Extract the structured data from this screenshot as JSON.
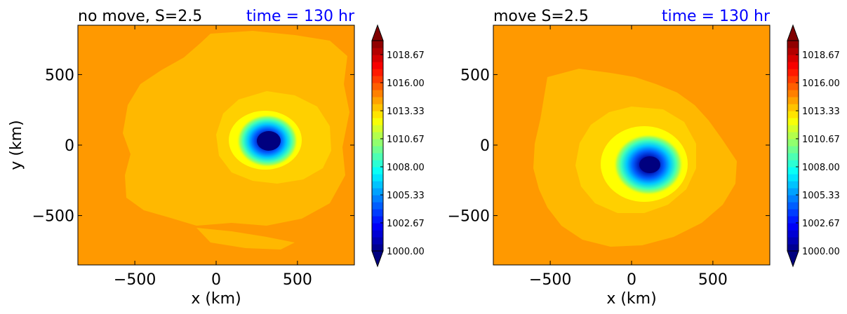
{
  "chart_data": [
    {
      "type": "heatmap",
      "title": "no move, S=2.5",
      "time_label": "time = 130 hr",
      "xlabel": "x (km)",
      "ylabel": "y (km)",
      "xlim": [
        -850,
        850
      ],
      "ylim": [
        -850,
        850
      ],
      "xticks": [
        -500,
        0,
        500
      ],
      "yticks": [
        -500,
        0,
        500
      ],
      "xtick_labels": [
        "−500",
        "0",
        "500"
      ],
      "ytick_labels": [
        "−500",
        "0",
        "500"
      ],
      "vortex_center": [
        320,
        30
      ],
      "colorbar": {
        "min": 1000.0,
        "max": 1020.0,
        "tick_values": [
          1000.0,
          1002.67,
          1005.33,
          1008.0,
          1010.67,
          1013.33,
          1016.0,
          1018.67
        ],
        "tick_labels": [
          "1000.00",
          "1002.67",
          "1005.33",
          "1008.00",
          "1010.67",
          "1013.33",
          "1016.00",
          "1018.67"
        ],
        "extend": "both"
      }
    },
    {
      "type": "heatmap",
      "title": "move S=2.5",
      "time_label": "time = 130 hr",
      "xlabel": "x (km)",
      "ylabel": "",
      "xlim": [
        -850,
        850
      ],
      "ylim": [
        -850,
        850
      ],
      "xticks": [
        -500,
        0,
        500
      ],
      "yticks": [
        -500,
        0,
        500
      ],
      "xtick_labels": [
        "−500",
        "0",
        "500"
      ],
      "ytick_labels": [
        "−500",
        "0",
        "500"
      ],
      "vortex_center": [
        120,
        -140
      ],
      "colorbar": {
        "min": 1000.0,
        "max": 1020.0,
        "tick_values": [
          1000.0,
          1002.67,
          1005.33,
          1008.0,
          1010.67,
          1013.33,
          1016.0,
          1018.67
        ],
        "tick_labels": [
          "1000.00",
          "1002.67",
          "1005.33",
          "1008.00",
          "1010.67",
          "1013.33",
          "1016.00",
          "1018.67"
        ],
        "extend": "both"
      }
    }
  ],
  "colors": {
    "background_field": "#ff9900",
    "outer_band": "#ffb800",
    "inner_band": "#ffd000",
    "yellow_band": "#ffff00",
    "title_color": "#000000",
    "time_color": "#0000ff"
  }
}
